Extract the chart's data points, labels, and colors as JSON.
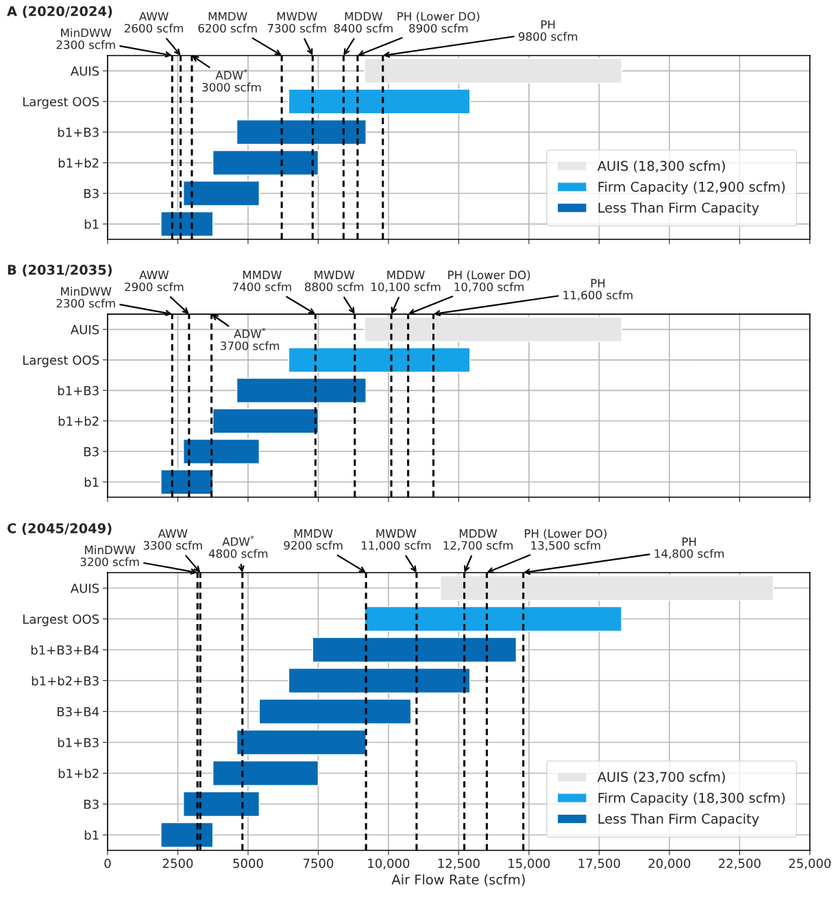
{
  "chart_data": [
    {
      "type": "bar",
      "orientation": "horizontal",
      "title": "A (2020/2024)",
      "categories": [
        "AUIS",
        "Largest OOS",
        "b1+B3",
        "b1+b2",
        "B3",
        "b1"
      ],
      "series": [
        {
          "name": "AUIS (18,300 scfm)",
          "color": "#e6e6e6",
          "values": [
            9150,
            null,
            null,
            null,
            null,
            null
          ],
          "base": [
            9150,
            null,
            null,
            null,
            null,
            null
          ]
        },
        {
          "name": "Firm Capacity (12,900 scfm)",
          "color": "#16a2e8",
          "values": [
            null,
            6450,
            null,
            null,
            null,
            null
          ],
          "base": [
            null,
            6450,
            null,
            null,
            null,
            null
          ]
        },
        {
          "name": "Less Than Firm Capacity",
          "color": "#066bb4",
          "values": [
            null,
            null,
            4600,
            3750,
            2700,
            1850
          ],
          "base": [
            null,
            null,
            4600,
            3750,
            2700,
            1900
          ]
        }
      ],
      "ref_lines": [
        {
          "axis": "x",
          "value": 2300,
          "label": "MinDWW\n2300 scfm",
          "color": "#000000",
          "line_style": "dashed"
        },
        {
          "axis": "x",
          "value": 2600,
          "label": "AWW\n2600 scfm",
          "color": "#000000",
          "line_style": "dashed"
        },
        {
          "axis": "x",
          "value": 3000,
          "label": "ADW$^{*}$\n3000 scfm",
          "color": "#000000",
          "line_style": "dashed"
        },
        {
          "axis": "x",
          "value": 6200,
          "label": "MMDW\n6200 scfm",
          "color": "#000000",
          "line_style": "dashed"
        },
        {
          "axis": "x",
          "value": 7300,
          "label": "MWDW\n7300 scfm",
          "color": "#000000",
          "line_style": "dashed"
        },
        {
          "axis": "x",
          "value": 8400,
          "label": "MDDW\n8400 scfm",
          "color": "#000000",
          "line_style": "dashed"
        },
        {
          "axis": "x",
          "value": 8900,
          "label": "PH (Lower DO)\n8900 scfm",
          "color": "#000000",
          "line_style": "dashed"
        },
        {
          "axis": "x",
          "value": 9800,
          "label": "PH\n9800 scfm",
          "color": "#000000",
          "line_style": "dashed"
        }
      ],
      "xlim": [
        0,
        25000
      ],
      "xticks": [
        0,
        2500,
        5000,
        7500,
        10000,
        12500,
        15000,
        17500,
        20000,
        22500,
        25000
      ],
      "tick_labels": "y",
      "grid": true,
      "legend": "bottom right"
    },
    {
      "type": "bar",
      "orientation": "horizontal",
      "title": "B (2031/2035)",
      "categories": [
        "AUIS",
        "Largest OOS",
        "b1+B3",
        "b1+b2",
        "B3",
        "b1"
      ],
      "series": [
        {
          "color": "#e6e6e6",
          "values": [
            9150,
            null,
            null,
            null,
            null,
            null
          ],
          "base": [
            9150,
            null,
            null,
            null,
            null,
            null
          ]
        },
        {
          "color": "#16a2e8",
          "values": [
            null,
            6450,
            null,
            null,
            null,
            null
          ],
          "base": [
            null,
            6450,
            null,
            null,
            null,
            null
          ]
        },
        {
          "color": "#066bb4",
          "values": [
            null,
            null,
            4600,
            3750,
            2700,
            1850
          ],
          "base": [
            null,
            null,
            4600,
            3750,
            2700,
            1900
          ]
        }
      ],
      "ref_lines": [
        {
          "axis": "x",
          "value": 2300,
          "label": "MinDWW\n2300 scfm",
          "color": "#000000",
          "line_style": "dashed"
        },
        {
          "axis": "x",
          "value": 2900,
          "label": "AWW\n2900 scfm",
          "color": "#000000",
          "line_style": "dashed"
        },
        {
          "axis": "x",
          "value": 3700,
          "label": "ADW$^{*}$\n3700 scfm",
          "color": "#000000",
          "line_style": "dashed"
        },
        {
          "axis": "x",
          "value": 7400,
          "label": "MMDW\n7400 scfm",
          "color": "#000000",
          "line_style": "dashed"
        },
        {
          "axis": "x",
          "value": 8800,
          "label": "MWDW\n8800 scfm",
          "color": "#000000",
          "line_style": "dashed"
        },
        {
          "axis": "x",
          "value": 10100,
          "label": "MDDW\n10,100 scfm",
          "color": "#000000",
          "line_style": "dashed"
        },
        {
          "axis": "x",
          "value": 10700,
          "label": "PH (Lower DO)\n10,700 scfm",
          "color": "#000000",
          "line_style": "dashed"
        },
        {
          "axis": "x",
          "value": 11600,
          "label": "PH\n11,600 scfm",
          "color": "#000000",
          "line_style": "dashed"
        }
      ],
      "xlim": [
        0,
        25000
      ],
      "xticks": [
        0,
        2500,
        5000,
        7500,
        10000,
        12500,
        15000,
        17500,
        20000,
        22500,
        25000
      ],
      "tick_labels": "y",
      "grid": true
    },
    {
      "type": "bar",
      "orientation": "horizontal",
      "title": "C (2045/2049)",
      "xlabel": "Air Flow Rate (scfm)",
      "categories": [
        "AUIS",
        "Largest OOS",
        "b1+B3+B4",
        "b1+b2+B3",
        "B3+B4",
        "b1+B3",
        "b1+b2",
        "B3",
        "b1"
      ],
      "series": [
        {
          "name": "AUIS (23,700 scfm)",
          "color": "#e6e6e6",
          "values": [
            11850,
            null,
            null,
            null,
            null,
            null,
            null,
            null,
            null
          ],
          "base": [
            11850,
            null,
            null,
            null,
            null,
            null,
            null,
            null,
            null
          ]
        },
        {
          "name": "Firm Capacity (18,300 scfm)",
          "color": "#16a2e8",
          "values": [
            null,
            9150,
            null,
            null,
            null,
            null,
            null,
            null,
            null
          ],
          "base": [
            null,
            9150,
            null,
            null,
            null,
            null,
            null,
            null,
            null
          ]
        },
        {
          "name": "Less Than Firm Capacity",
          "color": "#066bb4",
          "values": [
            null,
            null,
            7250,
            6450,
            5400,
            4600,
            3750,
            2700,
            1850
          ],
          "base": [
            null,
            null,
            7300,
            6450,
            5400,
            4600,
            3750,
            2700,
            1900
          ]
        }
      ],
      "ref_lines": [
        {
          "axis": "x",
          "value": 3200,
          "label": "MinDWW\n3200 scfm",
          "color": "#000000",
          "line_style": "dashed"
        },
        {
          "axis": "x",
          "value": 3300,
          "label": "AWW\n3300 scfm",
          "color": "#000000",
          "line_style": "dashed"
        },
        {
          "axis": "x",
          "value": 4800,
          "label": "ADW$^{*}$\n4800 scfm",
          "color": "#000000",
          "line_style": "dashed"
        },
        {
          "axis": "x",
          "value": 9200,
          "label": "MMDW\n9200 scfm",
          "color": "#000000",
          "line_style": "dashed"
        },
        {
          "axis": "x",
          "value": 11000,
          "label": "MWDW\n11,000 scfm",
          "color": "#000000",
          "line_style": "dashed"
        },
        {
          "axis": "x",
          "value": 12700,
          "label": "MDDW\n12,700 scfm",
          "color": "#000000",
          "line_style": "dashed"
        },
        {
          "axis": "x",
          "value": 13500,
          "label": "PH (Lower DO)\n13,500 scfm",
          "color": "#000000",
          "line_style": "dashed"
        },
        {
          "axis": "x",
          "value": 14800,
          "label": "PH\n14,800 scfm",
          "color": "#000000",
          "line_style": "dashed"
        }
      ],
      "xlim": [
        0,
        25000
      ],
      "xticks": [
        0,
        2500,
        5000,
        7500,
        {
          "value": 10000,
          "label": "10,000"
        },
        {
          "value": 12500,
          "label": "12,500"
        },
        {
          "value": 15000,
          "label": "15,000"
        },
        {
          "value": 17500,
          "label": "17,500"
        },
        {
          "value": 20000,
          "label": "20,000"
        },
        {
          "value": 22500,
          "label": "22,500"
        },
        {
          "value": 25000,
          "label": "25,000"
        }
      ],
      "grid": true,
      "legend": "bottom right"
    }
  ]
}
